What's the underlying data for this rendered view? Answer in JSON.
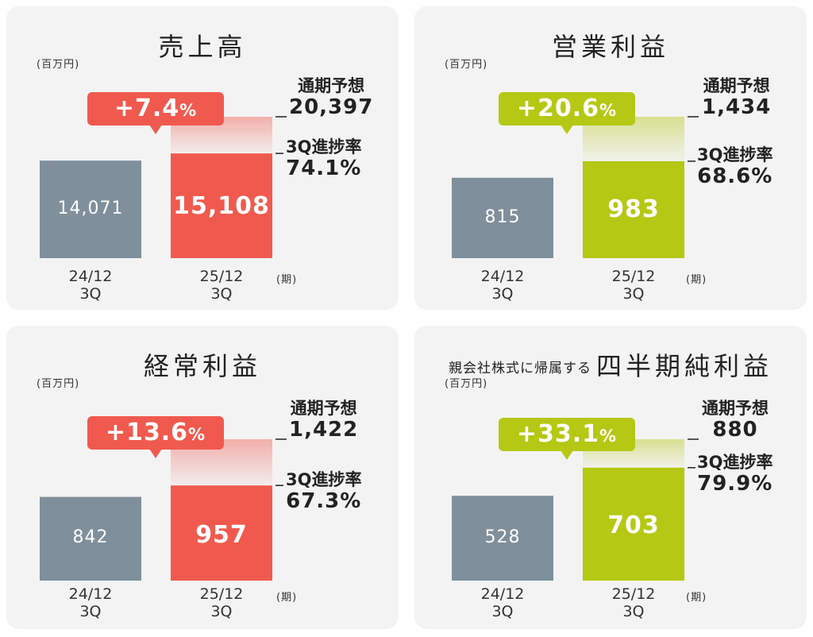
{
  "colors": {
    "panel_bg": "#f3f3f4",
    "prev_bar": "#7f8f9c",
    "red": "#f05a4e",
    "lime": "#b5c813",
    "text": "#222222"
  },
  "common": {
    "unit": "(百万円)",
    "period_unit": "(期)",
    "forecast_label": "通期予想",
    "progress_label": "3Q進捗率",
    "prev_period": "24/12",
    "cur_period": "25/12",
    "quarter": "3Q"
  },
  "chart_data": [
    {
      "type": "bar",
      "title": "売上高",
      "categories": [
        "24/12 3Q",
        "25/12 3Q"
      ],
      "values": [
        14071,
        15108
      ],
      "value_labels": [
        "14,071",
        "15,108"
      ],
      "growth": "+7.4",
      "growth_unit": "%",
      "forecast": 20397,
      "forecast_label": "20,397",
      "progress": "74.1%",
      "accent": "#f05a4e"
    },
    {
      "type": "bar",
      "title": "営業利益",
      "categories": [
        "24/12 3Q",
        "25/12 3Q"
      ],
      "values": [
        815,
        983
      ],
      "value_labels": [
        "815",
        "983"
      ],
      "growth": "+20.6",
      "growth_unit": "%",
      "forecast": 1434,
      "forecast_label": "1,434",
      "progress": "68.6%",
      "accent": "#b5c813"
    },
    {
      "type": "bar",
      "title": "経常利益",
      "categories": [
        "24/12 3Q",
        "25/12 3Q"
      ],
      "values": [
        842,
        957
      ],
      "value_labels": [
        "842",
        "957"
      ],
      "growth": "+13.6",
      "growth_unit": "%",
      "forecast": 1422,
      "forecast_label": "1,422",
      "progress": "67.3%",
      "accent": "#f05a4e"
    },
    {
      "type": "bar",
      "title_prefix": "親会社株式に帰属する",
      "title": "四半期純利益",
      "categories": [
        "24/12 3Q",
        "25/12 3Q"
      ],
      "values": [
        528,
        703
      ],
      "value_labels": [
        "528",
        "703"
      ],
      "growth": "+33.1",
      "growth_unit": "%",
      "forecast": 880,
      "forecast_label": "880",
      "progress": "79.9%",
      "accent": "#b5c813"
    }
  ]
}
